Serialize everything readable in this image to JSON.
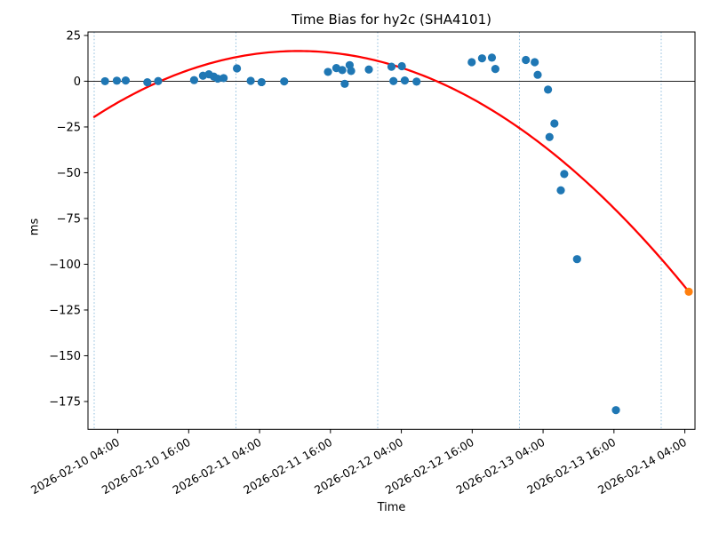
{
  "chart_data": {
    "type": "scatter",
    "title": "Time Bias for hy2c (SHA4101)",
    "xlabel": "Time",
    "ylabel": "ms",
    "x_reference": "2026-02-10 00:00",
    "xlim_hours": [
      -1.05,
      101.72
    ],
    "ylim": [
      -190.2,
      26.9
    ],
    "grid": "vertical-day-lines",
    "legend": "none",
    "ytick_values": [
      25,
      0,
      -25,
      -50,
      -75,
      -100,
      -125,
      -150,
      -175
    ],
    "ytick_labels": [
      "25",
      "0",
      "−25",
      "−50",
      "−75",
      "−100",
      "−125",
      "−150",
      "−175"
    ],
    "xtick_labels": [
      "2026-02-10 04:00",
      "2026-02-10 16:00",
      "2026-02-11 04:00",
      "2026-02-11 16:00",
      "2026-02-12 04:00",
      "2026-02-12 16:00",
      "2026-02-13 04:00",
      "2026-02-13 16:00",
      "2026-02-14 04:00"
    ],
    "day_gridlines": [
      "2026-02-10 00:00",
      "2026-02-11 00:00",
      "2026-02-12 00:00",
      "2026-02-13 00:00",
      "2026-02-14 00:00"
    ],
    "gridline_color": "#8ebcdc",
    "zero_line_color": "#000000",
    "series": [
      {
        "name": "time-bias-samples",
        "color": "#1f77b4",
        "points": [
          [
            "2026-02-10 01:50",
            0.0
          ],
          [
            "2026-02-10 03:50",
            0.3
          ],
          [
            "2026-02-10 05:20",
            0.4
          ],
          [
            "2026-02-10 09:00",
            -0.6
          ],
          [
            "2026-02-10 10:50",
            0.1
          ],
          [
            "2026-02-10 16:55",
            0.6
          ],
          [
            "2026-02-10 18:25",
            3.0
          ],
          [
            "2026-02-10 19:25",
            3.8
          ],
          [
            "2026-02-10 20:15",
            2.5
          ],
          [
            "2026-02-10 20:55",
            1.4
          ],
          [
            "2026-02-10 21:55",
            1.7
          ],
          [
            "2026-02-11 00:10",
            7.0
          ],
          [
            "2026-02-11 02:30",
            0.2
          ],
          [
            "2026-02-11 04:20",
            -0.5
          ],
          [
            "2026-02-11 08:10",
            -0.1
          ],
          [
            "2026-02-11 15:35",
            5.1
          ],
          [
            "2026-02-11 17:00",
            7.2
          ],
          [
            "2026-02-11 18:00",
            6.1
          ],
          [
            "2026-02-11 18:25",
            -1.4
          ],
          [
            "2026-02-11 19:15",
            8.8
          ],
          [
            "2026-02-11 19:30",
            5.6
          ],
          [
            "2026-02-11 22:30",
            6.4
          ],
          [
            "2026-02-12 02:20",
            7.9
          ],
          [
            "2026-02-12 02:40",
            0.1
          ],
          [
            "2026-02-12 04:05",
            8.2
          ],
          [
            "2026-02-12 04:35",
            0.4
          ],
          [
            "2026-02-12 06:35",
            -0.2
          ],
          [
            "2026-02-12 15:55",
            10.4
          ],
          [
            "2026-02-12 17:40",
            12.5
          ],
          [
            "2026-02-12 19:20",
            12.9
          ],
          [
            "2026-02-12 19:55",
            6.7
          ],
          [
            "2026-02-13 01:05",
            11.6
          ],
          [
            "2026-02-13 02:35",
            10.4
          ],
          [
            "2026-02-13 03:05",
            3.5
          ],
          [
            "2026-02-13 04:50",
            -4.6
          ],
          [
            "2026-02-13 05:05",
            -30.5
          ],
          [
            "2026-02-13 05:55",
            -23.1
          ],
          [
            "2026-02-13 07:00",
            -59.6
          ],
          [
            "2026-02-13 07:35",
            -50.7
          ],
          [
            "2026-02-13 09:45",
            -97.2
          ],
          [
            "2026-02-13 16:20",
            -179.7
          ]
        ]
      },
      {
        "name": "latest-sample",
        "color": "#ff7f0e",
        "points": [
          [
            "2026-02-14 04:40",
            -115.0
          ]
        ]
      }
    ],
    "fit_curve": {
      "shape": "quadratic",
      "color": "#ff0000",
      "vertex_time": "2026-02-11 10:35",
      "vertex_ms": 16.5,
      "a_ms_per_hour2": -0.0301,
      "start_time": "2026-02-10 00:00",
      "end_time": "2026-02-14 04:40"
    }
  }
}
